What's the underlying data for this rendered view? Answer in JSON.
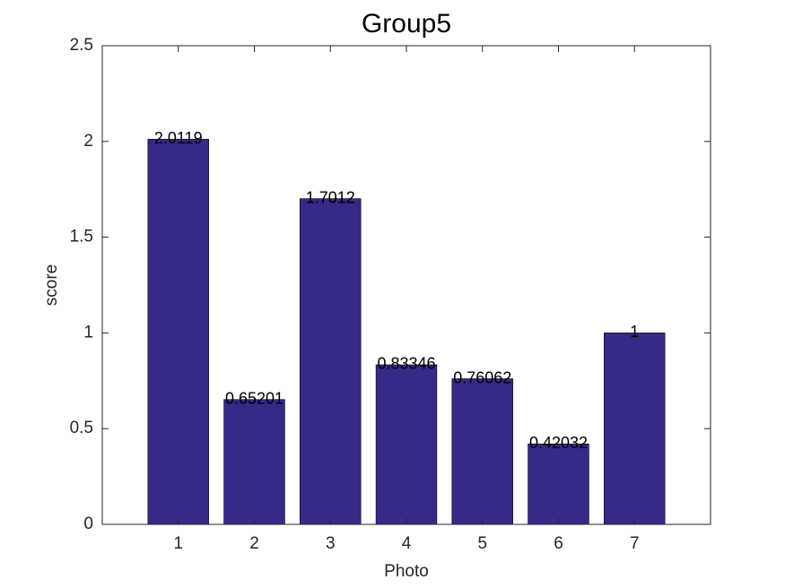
{
  "chart_data": {
    "type": "bar",
    "title": "Group5",
    "x_label": "Photo",
    "y_label": "score",
    "x": [
      1,
      2,
      3,
      4,
      5,
      6,
      7
    ],
    "values": [
      2.0119,
      0.65201,
      1.7012,
      0.83346,
      0.76062,
      0.42032,
      1
    ],
    "color": "#352a87",
    "xlim": [
      0,
      8
    ],
    "xticks": [
      1,
      2,
      3,
      4,
      5,
      6,
      7
    ],
    "ylim": [
      0,
      2.5
    ],
    "yticks": [
      0,
      0.5,
      1,
      1.5,
      2,
      2.5
    ],
    "grid": false
  }
}
